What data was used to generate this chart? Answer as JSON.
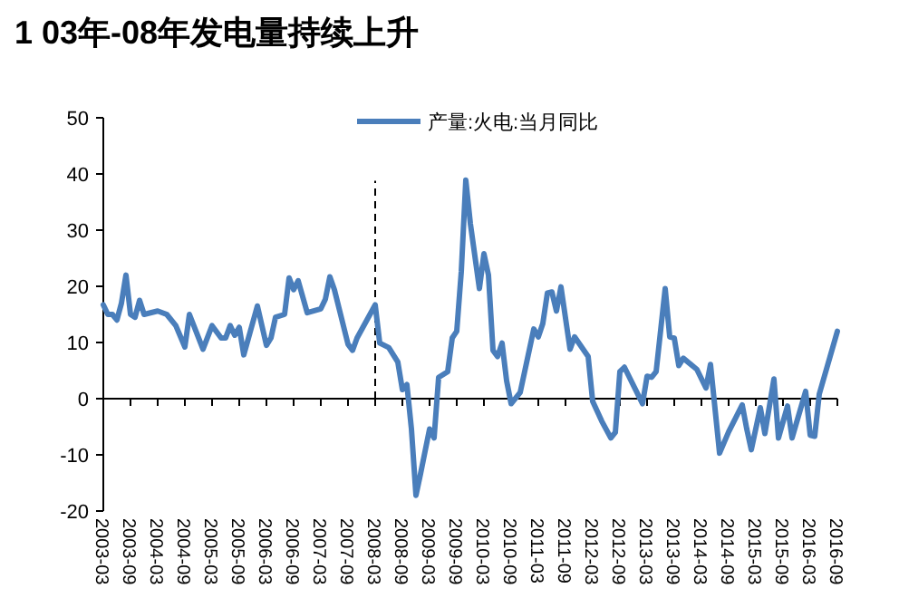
{
  "chart_data": {
    "type": "line",
    "title": "1 03年-08年发电量持续上升",
    "legend": "top",
    "marker": "none",
    "line_style": "solid",
    "ylim": [
      -20,
      50
    ],
    "yticks": [
      -20,
      -10,
      0,
      10,
      20,
      30,
      40,
      50
    ],
    "xlim": [
      "2003-03",
      "2016-09"
    ],
    "xticks": [
      "2003-03",
      "2003-09",
      "2004-03",
      "2004-09",
      "2005-03",
      "2005-09",
      "2006-03",
      "2006-09",
      "2007-03",
      "2007-09",
      "2008-03",
      "2008-09",
      "2009-03",
      "2009-09",
      "2010-03",
      "2010-09",
      "2011-03",
      "2011-09",
      "2012-03",
      "2012-09",
      "2013-03",
      "2013-09",
      "2014-03",
      "2014-09",
      "2015-03",
      "2015-09",
      "2016-03",
      "2016-09"
    ],
    "ref_lines": [
      {
        "axis": "x",
        "value": "2008-03",
        "color": "#000000",
        "line_style": "dashed"
      }
    ],
    "series": [
      {
        "name": "产量:火电:当月同比",
        "color": "#4a7ebb",
        "x": [
          "2003-03",
          "2003-04",
          "2003-05",
          "2003-06",
          "2003-07",
          "2003-08",
          "2003-09",
          "2003-10",
          "2003-11",
          "2003-12",
          "2004-03",
          "2004-05",
          "2004-07",
          "2004-09",
          "2004-10",
          "2005-01",
          "2005-03",
          "2005-05",
          "2005-06",
          "2005-07",
          "2005-08",
          "2005-09",
          "2005-10",
          "2006-01",
          "2006-03",
          "2006-04",
          "2006-05",
          "2006-07",
          "2006-08",
          "2006-09",
          "2006-10",
          "2006-12",
          "2007-03",
          "2007-04",
          "2007-05",
          "2007-06",
          "2007-09",
          "2007-10",
          "2007-11",
          "2008-03",
          "2008-04",
          "2008-06",
          "2008-08",
          "2008-09",
          "2008-10",
          "2008-11",
          "2008-12",
          "2009-01",
          "2009-03",
          "2009-04",
          "2009-05",
          "2009-07",
          "2009-08",
          "2009-09",
          "2009-10",
          "2009-11",
          "2009-12",
          "2010-02",
          "2010-03",
          "2010-04",
          "2010-05",
          "2010-06",
          "2010-07",
          "2010-08",
          "2010-09",
          "2010-11",
          "2011-02",
          "2011-03",
          "2011-04",
          "2011-05",
          "2011-06",
          "2011-07",
          "2011-08",
          "2011-10",
          "2011-11",
          "2012-02",
          "2012-03",
          "2012-05",
          "2012-07",
          "2012-08",
          "2012-09",
          "2012-10",
          "2013-02",
          "2013-03",
          "2013-04",
          "2013-05",
          "2013-07",
          "2013-08",
          "2013-09",
          "2013-10",
          "2013-11",
          "2014-02",
          "2014-04",
          "2014-05",
          "2014-07",
          "2014-09",
          "2014-12",
          "2015-01",
          "2015-02",
          "2015-04",
          "2015-05",
          "2015-07",
          "2015-08",
          "2015-10",
          "2015-11",
          "2016-02",
          "2016-03",
          "2016-04",
          "2016-05",
          "2016-09"
        ],
        "values": [
          16.7,
          15,
          15,
          14,
          17,
          22,
          15,
          14.5,
          17.5,
          15,
          15.6,
          15,
          13,
          9.2,
          15,
          8.8,
          13,
          10.8,
          10.8,
          13,
          11.3,
          12.7,
          7.8,
          16.5,
          9.5,
          10.8,
          14.5,
          15,
          21.5,
          19.4,
          21,
          15.3,
          16,
          17.7,
          21.7,
          19.4,
          9.7,
          8.6,
          10.8,
          16.7,
          9.9,
          9.1,
          6.5,
          1.6,
          2.5,
          -5.4,
          -17.2,
          -13.4,
          -5.4,
          -7,
          3.8,
          4.8,
          10.8,
          12,
          22.6,
          38.9,
          31.2,
          19.6,
          25.8,
          22,
          8.6,
          7.5,
          9.9,
          3.2,
          -0.9,
          1.1,
          12.4,
          11,
          13.4,
          18.8,
          19,
          15.6,
          19.9,
          8.8,
          11,
          7.5,
          -0.5,
          -4,
          -7,
          -6,
          4.8,
          5.6,
          -0.9,
          4,
          3.8,
          4.8,
          19.6,
          11,
          10.8,
          5.9,
          7.2,
          5.2,
          1.9,
          6.1,
          -9.7,
          -5.9,
          -1.1,
          -5.4,
          -9.1,
          -1.6,
          -6.2,
          3.5,
          -7,
          -1.3,
          -7,
          1.3,
          -6.5,
          -6.7,
          0.8,
          12
        ]
      }
    ]
  }
}
